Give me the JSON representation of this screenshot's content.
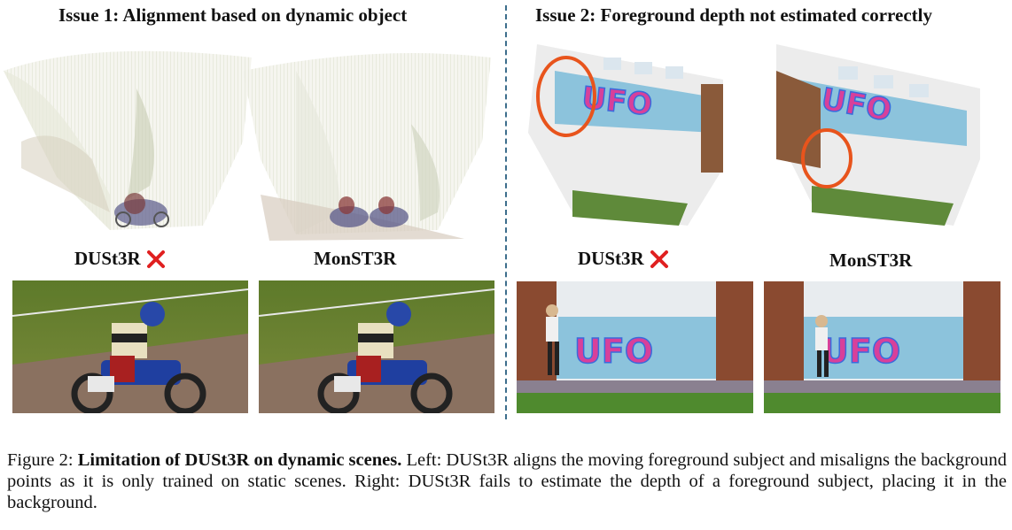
{
  "left": {
    "issue_title": "Issue 1: Alignment based on dynamic object",
    "method_a": "DUSt3R",
    "method_b": "MonST3R"
  },
  "right": {
    "issue_title": "Issue 2: Foreground depth not estimated correctly",
    "method_a": "DUSt3R",
    "method_b": "MonST3R"
  },
  "marks": {
    "wrong_icon": "red-x-icon",
    "wrong_color": "#e02020",
    "highlight_color": "#e8541c"
  },
  "caption": {
    "prefix": "Figure 2: ",
    "bold": "Limitation of DUSt3R on dynamic scenes.",
    "body": " Left: DUSt3R aligns the moving foreground subject and misaligns the background points as it is only trained on static scenes. Right: DUSt3R fails to estimate the depth of a foreground subject, placing it in the background."
  }
}
